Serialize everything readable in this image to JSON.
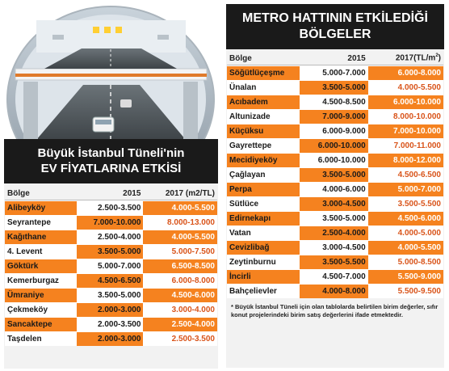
{
  "left": {
    "title_line1": "Büyük İstanbul Tüneli'nin",
    "title_line2": "EV FİYATLARINA ETKİSİ",
    "headers": [
      "Bölge",
      "2015",
      "2017 (m2/TL)"
    ],
    "rows": [
      [
        "Alibeyköy",
        "2.500-3.500",
        "4.000-5.500"
      ],
      [
        "Seyrantepe",
        "7.000-10.000",
        "8.000-13.000"
      ],
      [
        "Kağıthane",
        "2.500-4.000",
        "4.000-5.500"
      ],
      [
        "4. Levent",
        "3.500-5.000",
        "5.000-7.500"
      ],
      [
        "Göktürk",
        "5.000-7.000",
        "6.500-8.500"
      ],
      [
        "Kemerburgaz",
        "4.500-6.500",
        "6.000-8.000"
      ],
      [
        "Ümraniye",
        "3.500-5.000",
        "4.500-6.000"
      ],
      [
        "Çekmeköy",
        "2.000-3.000",
        "3.000-4.000"
      ],
      [
        "Sancaktepe",
        "2.000-3.500",
        "2.500-4.000"
      ],
      [
        "Taşdelen",
        "2.000-3.000",
        "2.500-3.500"
      ]
    ]
  },
  "right": {
    "title_line1": "METRO HATTININ ETKİLEDİĞİ",
    "title_line2": "BÖLGELER",
    "headers": [
      "Bölge",
      "2015",
      "2017(TL/m",
      "2",
      ")"
    ],
    "rows": [
      [
        "Söğütlüçeşme",
        "5.000-7.000",
        "6.000-8.000"
      ],
      [
        "Ünalan",
        "3.500-5.000",
        "4.000-5.500"
      ],
      [
        "Acıbadem",
        "4.500-8.500",
        "6.000-10.000"
      ],
      [
        "Altunizade",
        "7.000-9.000",
        "8.000-10.000"
      ],
      [
        "Küçüksu",
        "6.000-9.000",
        "7.000-10.000"
      ],
      [
        "Gayrettepe",
        "6.000-10.000",
        "7.000-11.000"
      ],
      [
        "Mecidiyeköy",
        "6.000-10.000",
        "8.000-12.000"
      ],
      [
        "Çağlayan",
        "3.500-5.000",
        "4.500-6.500"
      ],
      [
        "Perpa",
        "4.000-6.000",
        "5.000-7.000"
      ],
      [
        "Sütlüce",
        "3.000-4.500",
        "3.500-5.500"
      ],
      [
        "Edirnekapı",
        "3.500-5.000",
        "4.500-6.000"
      ],
      [
        "Vatan",
        "2.500-4.000",
        "4.000-5.000"
      ],
      [
        "Cevizlibağ",
        "3.000-4.500",
        "4.000-5.500"
      ],
      [
        "Zeytinburnu",
        "3.500-5.500",
        "5.000-8.500"
      ],
      [
        "İncirli",
        "4.500-7.000",
        "5.500-9.000"
      ],
      [
        "Bahçelievler",
        "4.000-8.000",
        "5.500-9.500"
      ]
    ],
    "footnote": "* Büyük İstanbul Tüneli için olan tablolarda belirtilen birim değerler, sıfır konut projelerindeki birim satış değerlerini ifade etmektedir."
  }
}
